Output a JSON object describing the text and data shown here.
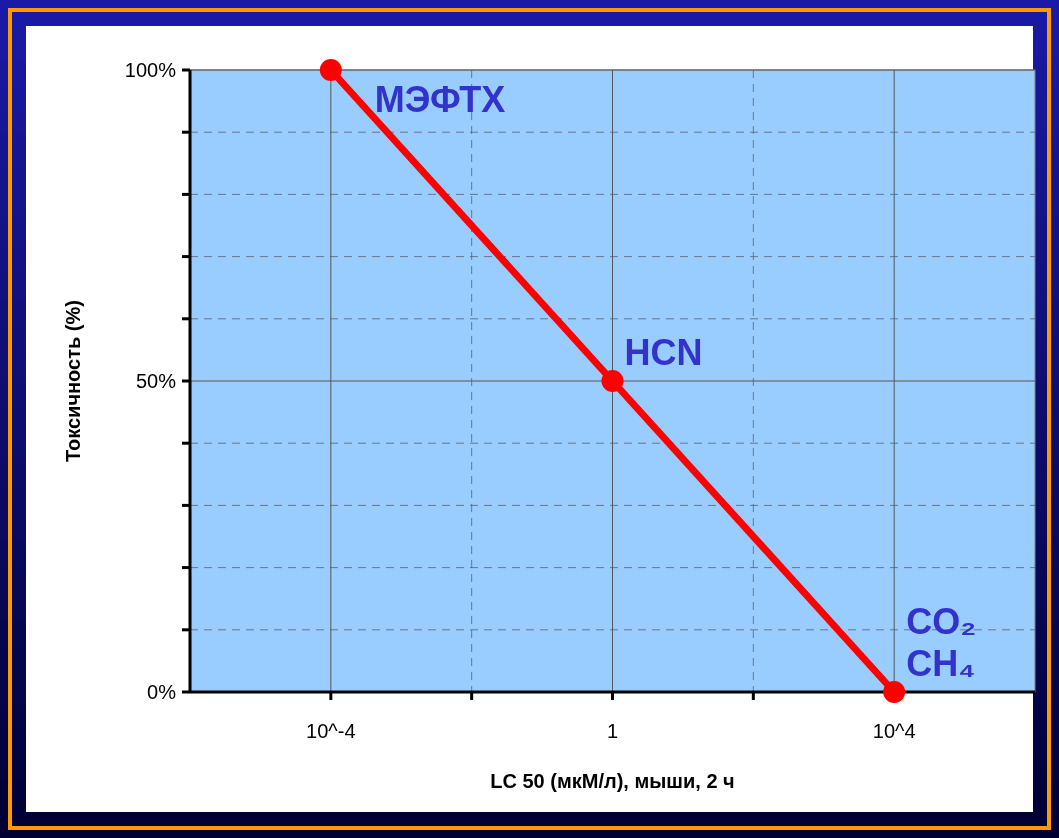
{
  "chart_data": {
    "type": "line",
    "xlabel": "LC 50 (мкМ/л), мыши, 2 ч",
    "ylabel": "Токсичность (%)",
    "x": [
      0.0001,
      1,
      10000
    ],
    "series": [
      {
        "color": "#ff0000",
        "values": [
          100,
          50,
          0
        ]
      }
    ],
    "log": "x",
    "marker": "circle",
    "line_style": "solid",
    "grid": true,
    "xlim": [
      1e-06,
      1000000
    ],
    "xticks": [
      {
        "value": 0.0001,
        "label": "10^-4"
      },
      {
        "value": 0.01,
        "label": null
      },
      {
        "value": 1,
        "label": "1"
      },
      {
        "value": 100,
        "label": null
      },
      {
        "value": 10000,
        "label": "10^4"
      }
    ],
    "ylim": [
      0,
      100
    ],
    "yticks": [
      {
        "value": 0,
        "label": "0%"
      },
      {
        "value": 10,
        "label": null
      },
      {
        "value": 20,
        "label": null
      },
      {
        "value": 30,
        "label": null
      },
      {
        "value": 40,
        "label": null
      },
      {
        "value": 50,
        "label": "50%"
      },
      {
        "value": 60,
        "label": null
      },
      {
        "value": 70,
        "label": null
      },
      {
        "value": 80,
        "label": null
      },
      {
        "value": 90,
        "label": null
      },
      {
        "value": 100,
        "label": "100%"
      }
    ],
    "annotations": [
      {
        "text": "МЭФТХ",
        "x": 0.0001,
        "y": 100
      },
      {
        "text": "HCN",
        "x": 1,
        "y": 50
      },
      {
        "text": "CO₂",
        "x": 10000,
        "y": 0
      },
      {
        "text": "CH₄",
        "x": 10000,
        "y": 0
      }
    ]
  }
}
